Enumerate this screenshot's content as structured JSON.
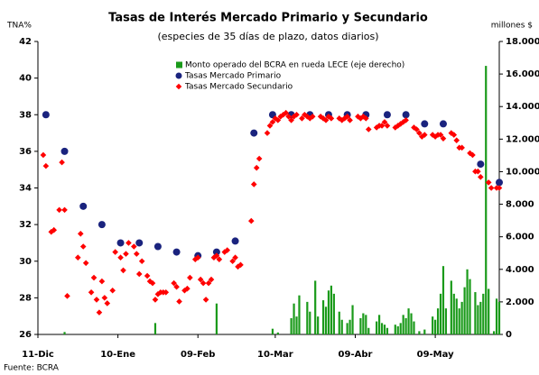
{
  "chart_data": {
    "type": "scatter",
    "title": "Tasas de Interés Mercado Primario y Secundario",
    "subtitle": "(especies de 35 días de plazo, datos diarios)",
    "y_label": "TNA%",
    "y2_label": "millones $",
    "source": "Fuente: BCRA",
    "xlim": [
      0,
      173
    ],
    "xticks": [
      {
        "value": 0,
        "label": "11-Dic"
      },
      {
        "value": 30,
        "label": "10-Ene"
      },
      {
        "value": 60,
        "label": "09-Feb"
      },
      {
        "value": 89,
        "label": "10-Mar"
      },
      {
        "value": 119,
        "label": "09-Abr"
      },
      {
        "value": 149,
        "label": "09-May"
      }
    ],
    "ylim": [
      26,
      42
    ],
    "yticks": [
      26,
      28,
      30,
      32,
      34,
      36,
      38,
      40,
      42
    ],
    "y2lim": [
      0,
      18000
    ],
    "y2ticks": [
      {
        "value": 0,
        "label": "0"
      },
      {
        "value": 2000,
        "label": "2.000"
      },
      {
        "value": 4000,
        "label": "4.000"
      },
      {
        "value": 6000,
        "label": "6.000"
      },
      {
        "value": 8000,
        "label": "8.000"
      },
      {
        "value": 10000,
        "label": "10.000"
      },
      {
        "value": 12000,
        "label": "12.000"
      },
      {
        "value": 14000,
        "label": "14.000"
      },
      {
        "value": 16000,
        "label": "16.000"
      },
      {
        "value": 18000,
        "label": "18.000"
      }
    ],
    "legend": "top-left",
    "series": [
      {
        "name": "Monto operado del BCRA en rueda LECE (eje derecho)",
        "color": "#1a9a1a",
        "kind": "bar",
        "axis": "y2",
        "x": [
          10,
          44,
          67,
          88,
          90,
          95,
          96,
          97,
          98,
          101,
          102,
          104,
          105,
          107,
          108,
          109,
          110,
          111,
          113,
          114,
          116,
          117,
          118,
          121,
          122,
          123,
          124,
          127,
          128,
          129,
          130,
          131,
          134,
          135,
          136,
          137,
          138,
          139,
          140,
          141,
          143,
          145,
          148,
          149,
          150,
          151,
          152,
          153,
          155,
          156,
          157,
          158,
          159,
          160,
          161,
          162,
          164,
          165,
          166,
          167,
          168,
          169,
          171,
          172,
          173
        ],
        "values": [
          150,
          700,
          1900,
          350,
          120,
          1000,
          1900,
          1100,
          2400,
          2000,
          1400,
          3300,
          1100,
          2100,
          1700,
          2700,
          3000,
          2500,
          1400,
          900,
          700,
          900,
          1800,
          1000,
          1300,
          1200,
          400,
          800,
          1200,
          700,
          600,
          400,
          600,
          500,
          700,
          1200,
          1000,
          1600,
          1300,
          800,
          200,
          300,
          1100,
          900,
          1600,
          2500,
          4200,
          1600,
          3300,
          2500,
          2200,
          1600,
          2000,
          2900,
          4000,
          3400,
          2600,
          1800,
          2000,
          2500,
          16500,
          2800,
          200,
          2200,
          2000
        ]
      },
      {
        "name": "Tasas Mercado Primario",
        "color": "#1a237e",
        "kind": "circle",
        "x": [
          3,
          10,
          17,
          24,
          31,
          38,
          45,
          52,
          60,
          67,
          74,
          81,
          88,
          95,
          102,
          109,
          116,
          123,
          131,
          138,
          145,
          152,
          166,
          173
        ],
        "values": [
          38.0,
          36.0,
          33.0,
          32.0,
          31.0,
          31.0,
          30.8,
          30.5,
          30.3,
          30.5,
          31.1,
          37.0,
          38.0,
          38.0,
          38.0,
          38.0,
          38.0,
          38.0,
          38.0,
          38.0,
          37.5,
          37.5,
          35.3,
          34.3
        ]
      },
      {
        "name": "Tasas Mercado Secundario",
        "color": "#ff0000",
        "kind": "diamond",
        "x": [
          2,
          3,
          5,
          6,
          8,
          9,
          10,
          11,
          15,
          16,
          17,
          18,
          20,
          21,
          22,
          23,
          24,
          25,
          26,
          28,
          29,
          31,
          32,
          33,
          34,
          36,
          37,
          38,
          39,
          41,
          42,
          43,
          44,
          45,
          46,
          47,
          48,
          51,
          52,
          53,
          55,
          56,
          57,
          59,
          60,
          61,
          62,
          63,
          64,
          65,
          66,
          67,
          68,
          70,
          71,
          73,
          74,
          75,
          76,
          80,
          81,
          82,
          83,
          86,
          87,
          88,
          89,
          90,
          91,
          92,
          93,
          94,
          95,
          96,
          97,
          99,
          100,
          101,
          102,
          103,
          106,
          107,
          108,
          109,
          110,
          113,
          114,
          115,
          116,
          117,
          120,
          121,
          122,
          123,
          124,
          127,
          128,
          129,
          130,
          131,
          134,
          135,
          136,
          137,
          138,
          141,
          142,
          143,
          144,
          145,
          148,
          149,
          150,
          151,
          152,
          155,
          156,
          157,
          158,
          159,
          162,
          163,
          164,
          165,
          166,
          169,
          170,
          172,
          173
        ],
        "values": [
          35.8,
          35.2,
          31.6,
          31.7,
          32.8,
          35.4,
          32.8,
          28.1,
          30.2,
          31.5,
          30.8,
          29.9,
          28.3,
          29.1,
          27.9,
          27.2,
          28.9,
          28.0,
          27.7,
          28.4,
          30.5,
          30.2,
          29.5,
          30.4,
          31.0,
          30.8,
          30.4,
          29.3,
          30.0,
          29.2,
          28.9,
          28.8,
          27.9,
          28.2,
          28.3,
          28.3,
          28.3,
          28.8,
          28.6,
          27.8,
          28.4,
          28.5,
          29.1,
          30.1,
          30.2,
          29.0,
          28.8,
          27.9,
          28.8,
          29.0,
          30.2,
          30.3,
          30.1,
          30.5,
          30.6,
          30.0,
          30.2,
          29.7,
          29.8,
          32.2,
          34.2,
          35.1,
          35.6,
          37.0,
          37.4,
          37.6,
          37.8,
          37.7,
          37.9,
          38.0,
          38.1,
          37.9,
          37.7,
          37.9,
          38.0,
          37.8,
          38.0,
          37.9,
          37.8,
          37.9,
          37.9,
          37.8,
          37.7,
          37.9,
          37.8,
          37.8,
          37.7,
          37.8,
          37.9,
          37.7,
          37.9,
          37.8,
          37.9,
          37.8,
          37.2,
          37.3,
          37.4,
          37.4,
          37.6,
          37.4,
          37.3,
          37.4,
          37.5,
          37.6,
          37.7,
          37.3,
          37.2,
          37.0,
          36.8,
          36.9,
          36.9,
          36.8,
          36.9,
          36.9,
          36.7,
          37.0,
          36.9,
          36.6,
          36.2,
          36.2,
          35.9,
          35.8,
          34.9,
          34.9,
          34.6,
          34.3,
          34.0,
          34.0,
          34.0
        ]
      }
    ]
  }
}
